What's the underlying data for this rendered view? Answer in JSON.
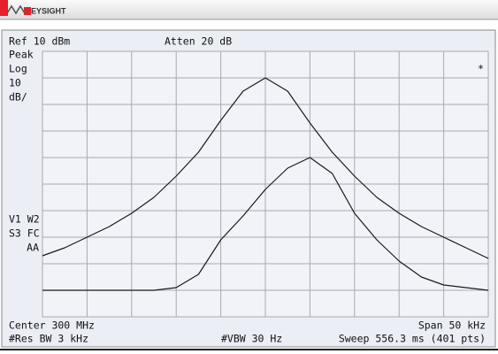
{
  "header": {
    "brand": "EYSIGHT"
  },
  "display": {
    "ref": "Ref 10 dBm",
    "atten": "Atten 20 dB",
    "detector": "Peak",
    "scale_type": "Log",
    "scale_value": "10",
    "scale_unit": "dB/",
    "marker": "*",
    "trace_info_1": "V1 W2",
    "trace_info_2": "S3 FC",
    "trace_info_3": "AA",
    "center": "Center 300 MHz",
    "span": "Span 50 kHz",
    "rbw": "#Res BW 3 kHz",
    "vbw": "#VBW 30 Hz",
    "sweep": "Sweep 556.3 ms (401 pts)"
  },
  "chart_data": {
    "type": "line",
    "x": [
      299.975,
      299.9775,
      299.98,
      299.9825,
      299.985,
      299.9875,
      299.99,
      299.9925,
      299.995,
      299.9975,
      300,
      300.0025,
      300.005,
      300.0075,
      300.01,
      300.0125,
      300.015,
      300.0175,
      300.02,
      300.0225,
      300.025
    ],
    "series": [
      {
        "color": "#1a1a1a",
        "values": [
          -67,
          -64,
          -60,
          -56,
          -51,
          -45,
          -37,
          -28,
          -16,
          -5,
          0,
          -5,
          -17,
          -28,
          -37,
          -45,
          -51,
          -56,
          -60,
          -64,
          -68
        ]
      },
      {
        "color": "#1a1a1a",
        "values": [
          -80,
          -80,
          -80,
          -80,
          -80,
          -80,
          -79,
          -74,
          -61,
          -52,
          -42,
          -34,
          -30,
          -36,
          -51,
          -61,
          -69,
          -75,
          -78,
          -79,
          -80
        ]
      }
    ],
    "xlim": [
      299.975,
      300.025
    ],
    "ylim": [
      -90,
      10
    ],
    "xticks": [
      299.975,
      299.98,
      299.985,
      299.99,
      299.995,
      300,
      300.005,
      300.01,
      300.015,
      300.02,
      300.025
    ],
    "yticks": [
      -90,
      -80,
      -70,
      -60,
      -50,
      -40,
      -30,
      -20,
      -10,
      0,
      10
    ],
    "grid": true
  }
}
